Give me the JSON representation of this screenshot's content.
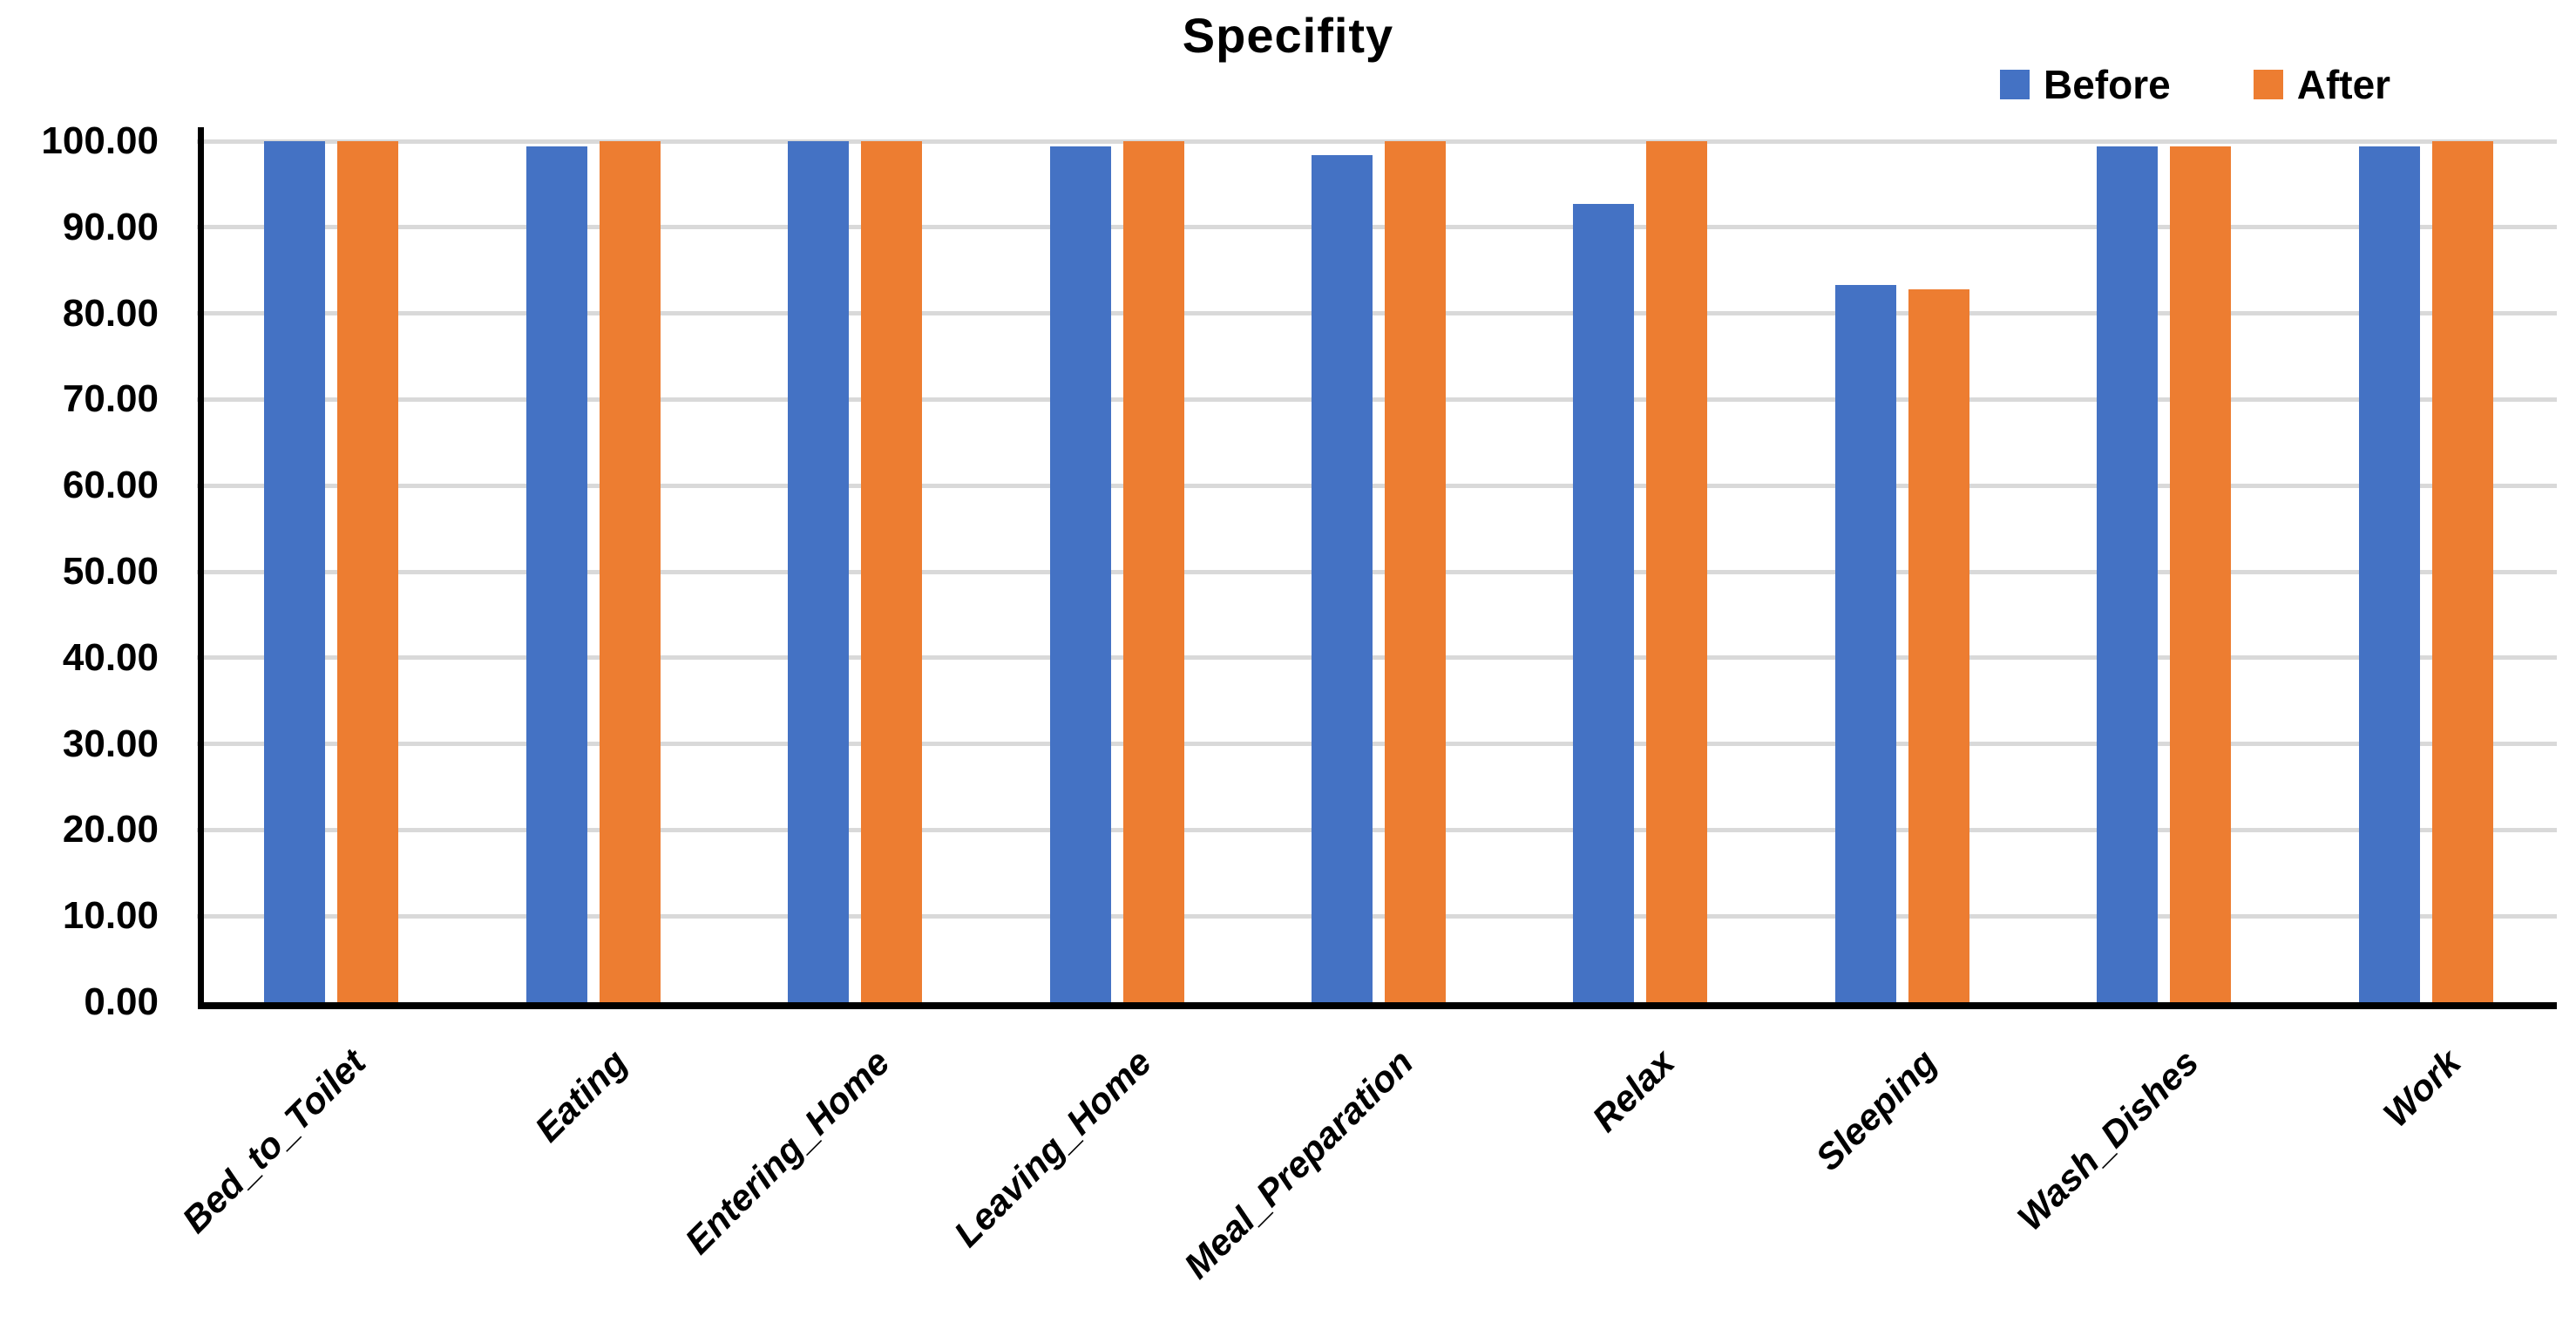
{
  "chart_data": {
    "type": "bar",
    "title": "Specifity",
    "categories": [
      "Bed_to_Toilet",
      "Eating",
      "Entering_Home",
      "Leaving_Home",
      "Meal_Preparation",
      "Relax",
      "Sleeping",
      "Wash_Dishes",
      "Work"
    ],
    "series": [
      {
        "name": "Before",
        "color": "#4472C4",
        "values": [
          100,
          99.4,
          100,
          99.4,
          98.4,
          92.7,
          83.3,
          99.4,
          99.4
        ]
      },
      {
        "name": "After",
        "color": "#ED7D31",
        "values": [
          100,
          100,
          100,
          100,
          100,
          100,
          82.8,
          99.4,
          100
        ]
      }
    ],
    "xlabel": "",
    "ylabel": "",
    "ylim": [
      0,
      100
    ],
    "ytick_step": 10,
    "ytick_labels": [
      "0.00",
      "10.00",
      "20.00",
      "30.00",
      "40.00",
      "50.00",
      "60.00",
      "70.00",
      "80.00",
      "90.00",
      "100.00"
    ],
    "grid": "horizontal",
    "legend_position": "top-right",
    "colors": {
      "gridline": "#D9D9D9",
      "axis": "#000000",
      "background": "#FFFFFF"
    }
  }
}
